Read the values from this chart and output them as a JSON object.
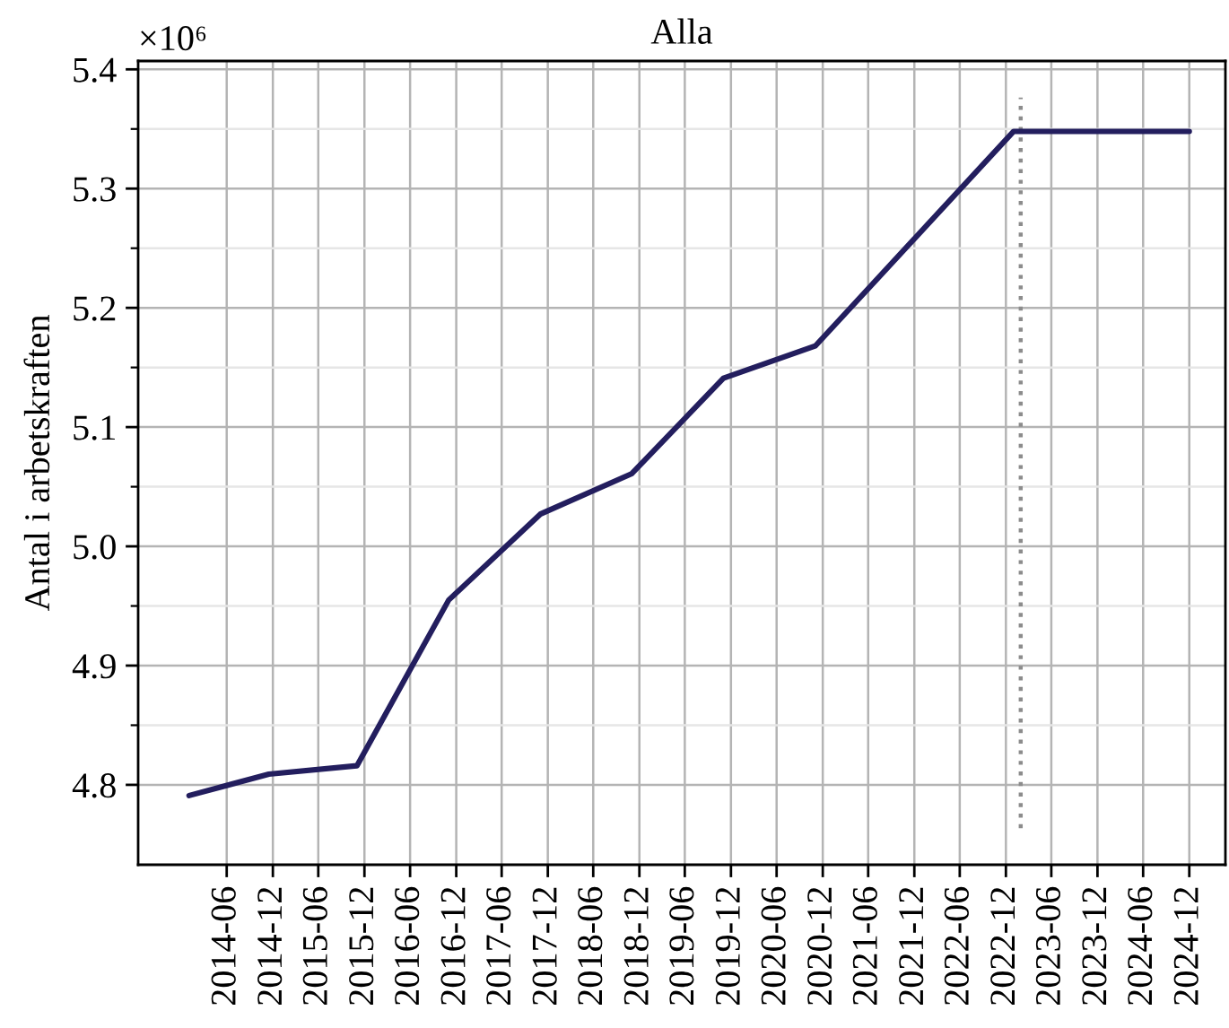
{
  "chart_data": {
    "type": "line",
    "title": "Alla",
    "ylabel": "Antal i arbetskraften",
    "x": [
      "2014-01-31",
      "2014-12-15",
      "2015-12-01",
      "2016-12-01",
      "2017-12-01",
      "2018-12-01",
      "2019-12-01",
      "2020-12-01",
      "2023-01-31",
      "2024-12-31"
    ],
    "series": [
      {
        "color": "#231e5e",
        "values": [
          4.791,
          4.809,
          4.816,
          4.955,
          5.027,
          5.061,
          5.141,
          5.168,
          5.348,
          5.348
        ]
      }
    ],
    "xlim": [
      "2013-07-12",
      "2025-05-24"
    ],
    "xticks": [
      {
        "value": "2014-06-30",
        "label": "2014-06"
      },
      {
        "value": "2014-12-31",
        "label": "2014-12"
      },
      {
        "value": "2015-06-30",
        "label": "2015-06"
      },
      {
        "value": "2015-12-31",
        "label": "2015-12"
      },
      {
        "value": "2016-06-30",
        "label": "2016-06"
      },
      {
        "value": "2016-12-31",
        "label": "2016-12"
      },
      {
        "value": "2017-06-30",
        "label": "2017-06"
      },
      {
        "value": "2017-12-31",
        "label": "2017-12"
      },
      {
        "value": "2018-06-30",
        "label": "2018-06"
      },
      {
        "value": "2018-12-31",
        "label": "2018-12"
      },
      {
        "value": "2019-06-30",
        "label": "2019-06"
      },
      {
        "value": "2019-12-31",
        "label": "2019-12"
      },
      {
        "value": "2020-06-30",
        "label": "2020-06"
      },
      {
        "value": "2020-12-31",
        "label": "2020-12"
      },
      {
        "value": "2021-06-30",
        "label": "2021-06"
      },
      {
        "value": "2021-12-31",
        "label": "2021-12"
      },
      {
        "value": "2022-06-30",
        "label": "2022-06"
      },
      {
        "value": "2022-12-31",
        "label": "2022-12"
      },
      {
        "value": "2023-06-30",
        "label": "2023-06"
      },
      {
        "value": "2023-12-31",
        "label": "2023-12"
      },
      {
        "value": "2024-06-30",
        "label": "2024-06"
      },
      {
        "value": "2024-12-31",
        "label": "2024-12"
      }
    ],
    "ylim": [
      4.733,
      5.407
    ],
    "yticks": [
      4.8,
      {
        "value": 4.85,
        "label": null
      },
      4.9,
      {
        "value": 4.95,
        "label": null
      },
      {
        "value": 5,
        "label": "5.0"
      },
      {
        "value": 5.05,
        "label": null
      },
      5.1,
      {
        "value": 5.15,
        "label": null
      },
      5.2,
      {
        "value": 5.25,
        "label": null
      },
      5.3,
      {
        "value": 5.35,
        "label": null
      },
      5.4
    ],
    "ref_lines": [
      {
        "axis": "x",
        "value": "2023-02-28",
        "color": "#8c8c8c",
        "line_style": "dotted"
      }
    ],
    "annotations": [
      "×10⁶"
    ],
    "grid": true,
    "line_style": "solid"
  }
}
